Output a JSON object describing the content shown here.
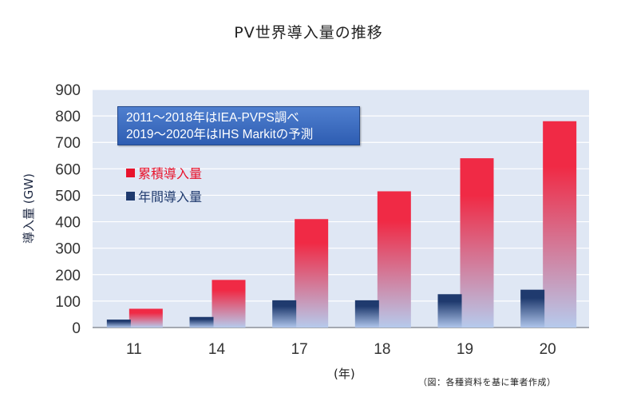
{
  "title": "PV世界導入量の推移",
  "note": {
    "line1": "2011〜2018年はIEA-PVPS調べ",
    "line2": "2019〜2020年はIHS Markitの予測"
  },
  "legend": [
    {
      "label": "累積導入量",
      "color": "#e8132c"
    },
    {
      "label": "年間導入量",
      "color": "#1f3a6e"
    }
  ],
  "source": "（図：各種資料を基に筆者作成）",
  "colors": {
    "plot_bg": "#dfe7f4",
    "cumulative_top": "#f02a45",
    "cumulative_bottom": "#b6caec",
    "annual_top": "#1f3a6e",
    "annual_bottom": "#aec4ea"
  },
  "chart_data": {
    "type": "bar",
    "categories": [
      "11",
      "14",
      "17",
      "18",
      "19",
      "20"
    ],
    "series": [
      {
        "name": "年間導入量",
        "values": [
          30,
          40,
          103,
          103,
          126,
          143
        ]
      },
      {
        "name": "累積導入量",
        "values": [
          71,
          180,
          410,
          515,
          640,
          780
        ]
      }
    ],
    "ylabel": "導入量 (GW)",
    "xlabel": "(年)",
    "ylim": [
      0,
      900
    ],
    "yticks": [
      0,
      100,
      200,
      300,
      400,
      500,
      600,
      700,
      800,
      900
    ],
    "grid": true
  }
}
